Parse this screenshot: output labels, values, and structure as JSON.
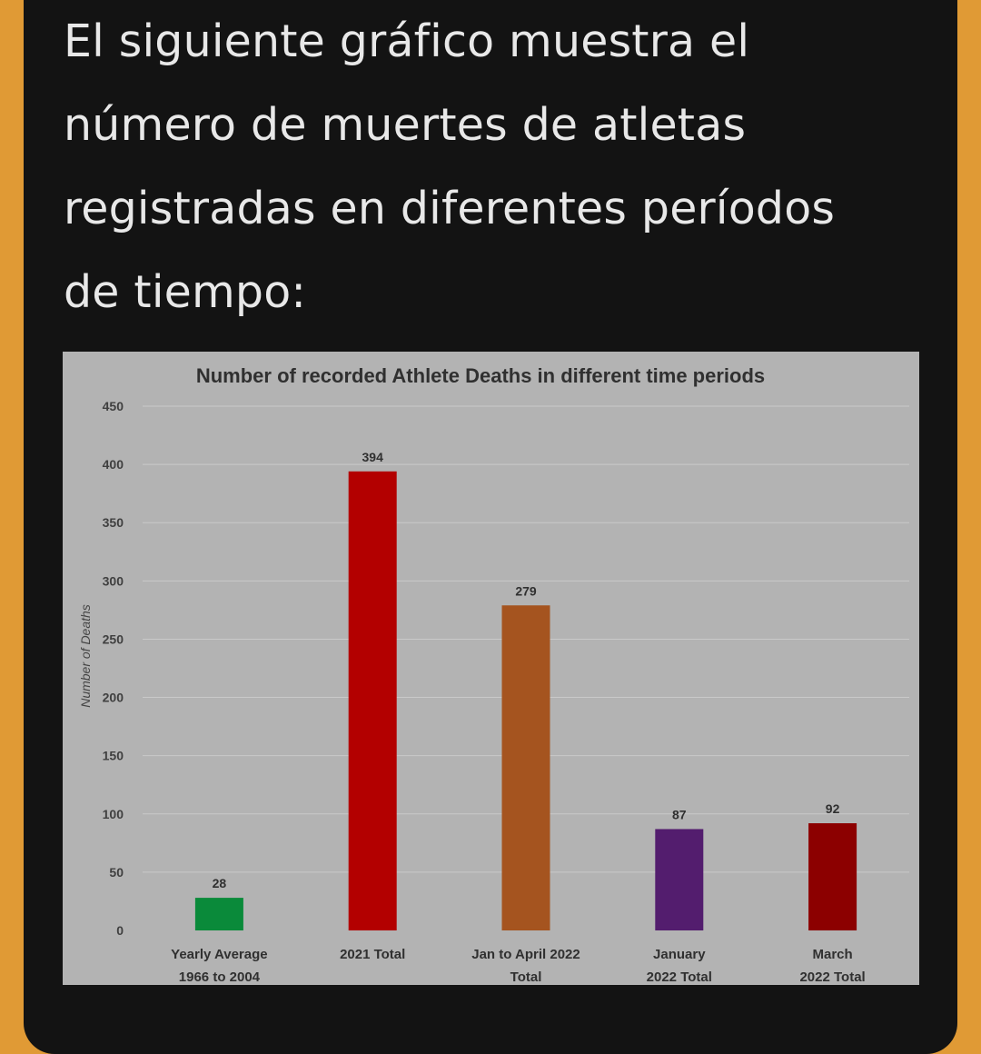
{
  "post": {
    "text_lines": [
      "El siguiente gráfico muestra el",
      "número de muertes de atletas",
      "registradas en diferentes períodos",
      "de tiempo:"
    ]
  },
  "colors": {
    "page_background": "#e09a35",
    "card_background": "#131313",
    "chart_background": "#b3b3b3",
    "gridline": "#c9c9c9",
    "text": "#303030"
  },
  "chart_data": {
    "type": "bar",
    "title": "Number of recorded Athlete Deaths in different time periods",
    "ylabel": "Number of Deaths",
    "xlabel": "",
    "ylim": [
      0,
      450
    ],
    "yticks": [
      0,
      50,
      100,
      150,
      200,
      250,
      300,
      350,
      400,
      450
    ],
    "grid": true,
    "categories": [
      [
        "Yearly Average",
        "1966 to 2004"
      ],
      [
        "2021 Total"
      ],
      [
        "Jan to April 2022",
        "Total"
      ],
      [
        "January",
        "2022 Total"
      ],
      [
        "March",
        "2022 Total"
      ]
    ],
    "values": [
      28,
      394,
      279,
      87,
      92
    ],
    "data_labels": [
      "28",
      "394",
      "279",
      "87",
      "92"
    ],
    "bar_colors": [
      "#0a8a3a",
      "#b30000",
      "#a5541f",
      "#531d6e",
      "#8c0000"
    ]
  }
}
